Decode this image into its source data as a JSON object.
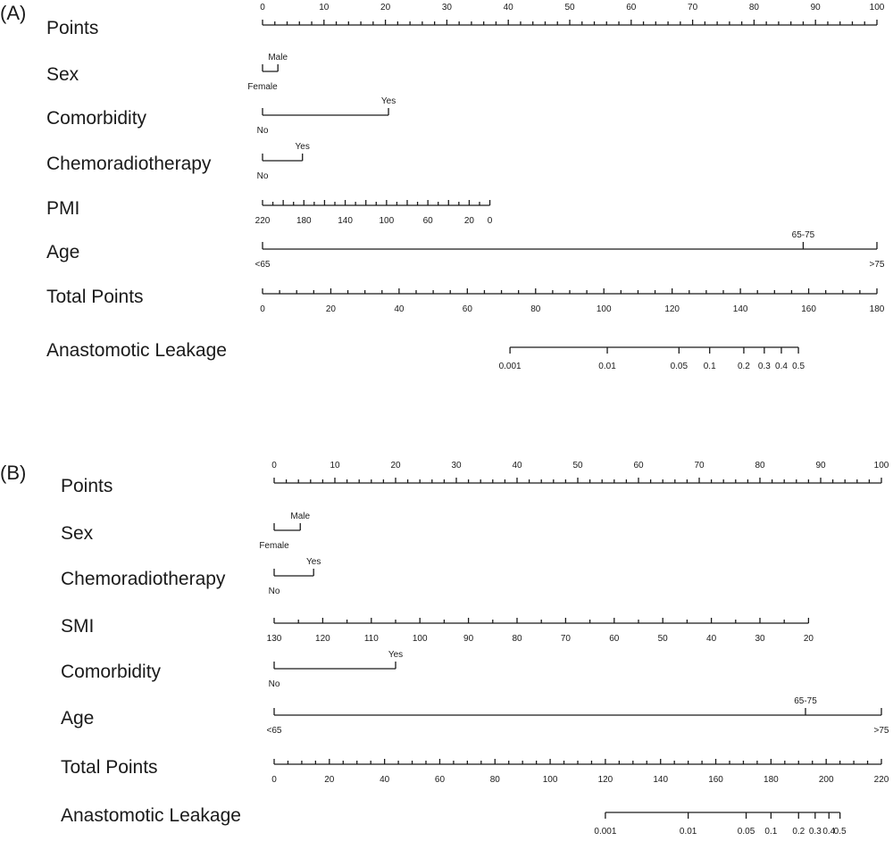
{
  "chart_data": [
    {
      "type": "nomogram",
      "panel": "(A)",
      "rows": [
        {
          "label": "Points",
          "kind": "points",
          "range": [
            0,
            100
          ],
          "major": [
            0,
            10,
            20,
            30,
            40,
            50,
            60,
            70,
            80,
            90,
            100
          ],
          "minor_step": 2
        },
        {
          "label": "Sex",
          "kind": "categorical",
          "levels": [
            {
              "name": "Female",
              "points": 0,
              "pos": "below"
            },
            {
              "name": "Male",
              "points": 2.5,
              "pos": "above"
            }
          ]
        },
        {
          "label": "Comorbidity",
          "kind": "categorical",
          "levels": [
            {
              "name": "No",
              "points": 0,
              "pos": "below"
            },
            {
              "name": "Yes",
              "points": 20.5,
              "pos": "above"
            }
          ]
        },
        {
          "label": "Chemoradiotherapy",
          "kind": "categorical",
          "levels": [
            {
              "name": "No",
              "points": 0,
              "pos": "below"
            },
            {
              "name": "Yes",
              "points": 6.5,
              "pos": "above"
            }
          ]
        },
        {
          "label": "PMI",
          "kind": "continuous",
          "ticks": [
            220,
            200,
            180,
            160,
            140,
            120,
            100,
            80,
            60,
            40,
            20,
            0
          ],
          "tick_labels": [
            "220",
            "",
            "180",
            "",
            "140",
            "",
            "100",
            "",
            "60",
            "",
            "20",
            "0"
          ],
          "points_at": [
            [
              220,
              0
            ],
            [
              0,
              37
            ]
          ]
        },
        {
          "label": "Age",
          "kind": "categorical",
          "levels": [
            {
              "name": "<65",
              "points": 0,
              "pos": "below"
            },
            {
              "name": "65-75",
              "points": 88,
              "pos": "above"
            },
            {
              "name": ">75",
              "points": 100,
              "pos": "below"
            }
          ]
        },
        {
          "label": "Total Points",
          "kind": "points",
          "range": [
            0,
            180
          ],
          "major": [
            0,
            20,
            40,
            60,
            80,
            100,
            120,
            140,
            160,
            180
          ],
          "minor_step": 5
        },
        {
          "label": "Anastomotic Leakage",
          "kind": "probability",
          "ticks": [
            {
              "label": "0.001",
              "total_points": 72.5
            },
            {
              "label": "0.01",
              "total_points": 101
            },
            {
              "label": "0.05",
              "total_points": 122
            },
            {
              "label": "0.1",
              "total_points": 131
            },
            {
              "label": "0.2",
              "total_points": 141
            },
            {
              "label": "0.3",
              "total_points": 147
            },
            {
              "label": "0.4",
              "total_points": 152
            },
            {
              "label": "0.5",
              "total_points": 157
            }
          ]
        }
      ]
    },
    {
      "type": "nomogram",
      "panel": "(B)",
      "rows": [
        {
          "label": "Points",
          "kind": "points",
          "range": [
            0,
            100
          ],
          "major": [
            0,
            10,
            20,
            30,
            40,
            50,
            60,
            70,
            80,
            90,
            100
          ],
          "minor_step": 2
        },
        {
          "label": "Sex",
          "kind": "categorical",
          "levels": [
            {
              "name": "Female",
              "points": 0,
              "pos": "below"
            },
            {
              "name": "Male",
              "points": 4.3,
              "pos": "above"
            }
          ]
        },
        {
          "label": "Chemoradiotherapy",
          "kind": "categorical",
          "levels": [
            {
              "name": "No",
              "points": 0,
              "pos": "below"
            },
            {
              "name": "Yes",
              "points": 6.5,
              "pos": "above"
            }
          ]
        },
        {
          "label": "SMI",
          "kind": "continuous",
          "ticks": [
            130,
            120,
            110,
            100,
            90,
            80,
            70,
            60,
            50,
            40,
            30,
            20
          ],
          "tick_labels": [
            "130",
            "120",
            "110",
            "100",
            "90",
            "80",
            "70",
            "60",
            "50",
            "40",
            "30",
            "20"
          ],
          "points_at": [
            [
              130,
              0
            ],
            [
              20,
              88
            ]
          ]
        },
        {
          "label": "Comorbidity",
          "kind": "categorical",
          "levels": [
            {
              "name": "No",
              "points": 0,
              "pos": "below"
            },
            {
              "name": "Yes",
              "points": 20,
              "pos": "above"
            }
          ]
        },
        {
          "label": "Age",
          "kind": "categorical",
          "levels": [
            {
              "name": "<65",
              "points": 0,
              "pos": "below"
            },
            {
              "name": "65-75",
              "points": 87.5,
              "pos": "above"
            },
            {
              "name": ">75",
              "points": 100,
              "pos": "below"
            }
          ]
        },
        {
          "label": "Total Points",
          "kind": "points",
          "range": [
            0,
            220
          ],
          "major": [
            0,
            20,
            40,
            60,
            80,
            100,
            120,
            140,
            160,
            180,
            200,
            220
          ],
          "minor_step": 5
        },
        {
          "label": "Anastomotic Leakage",
          "kind": "probability",
          "ticks": [
            {
              "label": "0.001",
              "total_points": 120
            },
            {
              "label": "0.01",
              "total_points": 150
            },
            {
              "label": "0.05",
              "total_points": 171
            },
            {
              "label": "0.1",
              "total_points": 180
            },
            {
              "label": "0.2",
              "total_points": 190
            },
            {
              "label": "0.3",
              "total_points": 196
            },
            {
              "label": "0.4",
              "total_points": 201
            },
            {
              "label": "0.5",
              "total_points": 205
            }
          ]
        }
      ]
    }
  ]
}
